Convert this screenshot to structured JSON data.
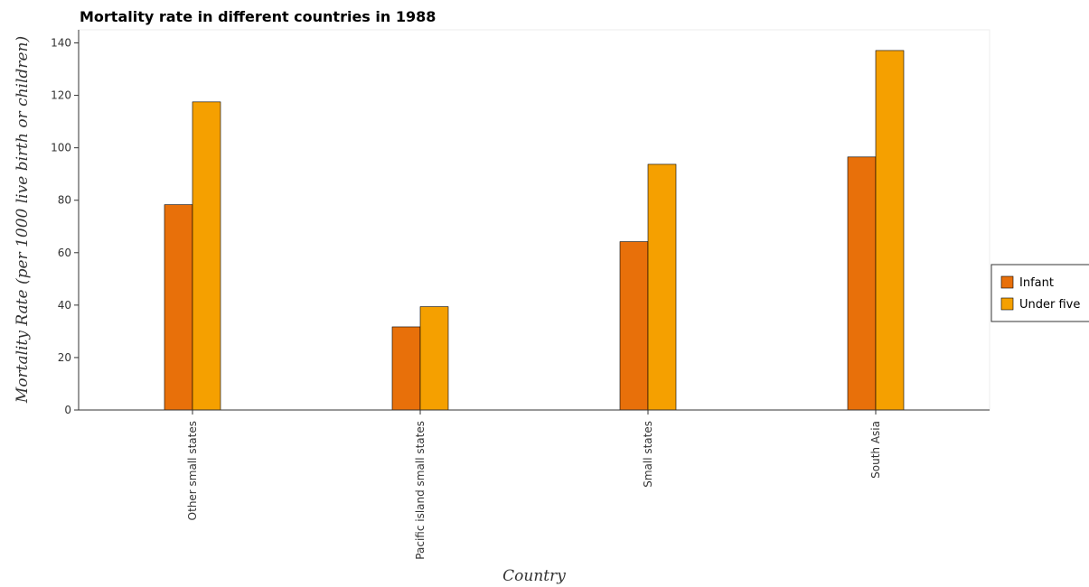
{
  "chart_data": {
    "type": "bar",
    "title": "Mortality rate in different countries in 1988",
    "xlabel": "Country",
    "ylabel": "Mortality Rate (per 1000 live birth or children)",
    "categories": [
      "Other small states",
      "Pacific island small states",
      "Small states",
      "South Asia"
    ],
    "series": [
      {
        "name": "Infant",
        "color": "#e8700a",
        "values": [
          78.3,
          31.7,
          64.2,
          96.5
        ]
      },
      {
        "name": "Under five",
        "color": "#f5a000",
        "values": [
          117.5,
          39.4,
          93.7,
          137.1
        ]
      }
    ],
    "ylim": [
      0,
      145
    ],
    "yticks": [
      0,
      20,
      40,
      60,
      80,
      100,
      120,
      140
    ],
    "grid": false,
    "legend_position": "right"
  }
}
